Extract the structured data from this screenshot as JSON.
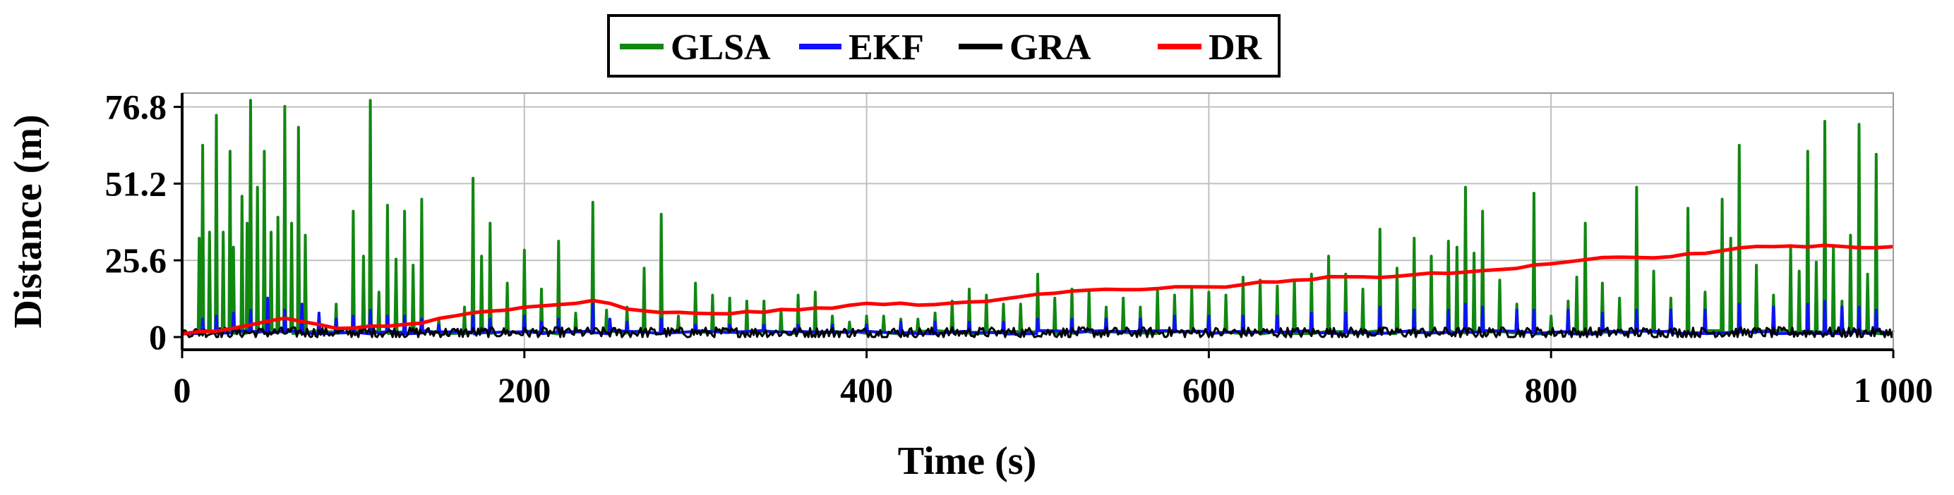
{
  "chart_data": {
    "type": "line",
    "title": "",
    "xlabel": "Time (s)",
    "ylabel": "Distance (m)",
    "xlim": [
      0,
      1000
    ],
    "ylim": [
      0,
      80
    ],
    "x_ticks": [
      0,
      200,
      400,
      600,
      800,
      1000
    ],
    "x_tick_labels": [
      "0",
      "200",
      "400",
      "600",
      "800",
      "1 000"
    ],
    "y_ticks": [
      0,
      25.6,
      51.2,
      76.8
    ],
    "y_tick_labels": [
      "0",
      "25.6",
      "51.2",
      "76.8"
    ],
    "grid": true,
    "legend_position": "top-center",
    "legend": [
      "GLSA",
      "EKF",
      "GRA",
      "DR"
    ],
    "series": [
      {
        "name": "GLSA",
        "color": "#118811",
        "style": "spikes",
        "baseline": 1,
        "peaks": [
          [
            10,
            33
          ],
          [
            12,
            64
          ],
          [
            16,
            35
          ],
          [
            20,
            74
          ],
          [
            24,
            35
          ],
          [
            28,
            62
          ],
          [
            30,
            30
          ],
          [
            35,
            47
          ],
          [
            38,
            38
          ],
          [
            40,
            79
          ],
          [
            44,
            50
          ],
          [
            48,
            62
          ],
          [
            52,
            35
          ],
          [
            56,
            40
          ],
          [
            60,
            77
          ],
          [
            64,
            38
          ],
          [
            68,
            70
          ],
          [
            72,
            34
          ],
          [
            80,
            8
          ],
          [
            90,
            11
          ],
          [
            100,
            42
          ],
          [
            106,
            27
          ],
          [
            110,
            79
          ],
          [
            115,
            15
          ],
          [
            120,
            44
          ],
          [
            125,
            26
          ],
          [
            130,
            42
          ],
          [
            135,
            24
          ],
          [
            140,
            46
          ],
          [
            150,
            6
          ],
          [
            165,
            10
          ],
          [
            170,
            53
          ],
          [
            175,
            27
          ],
          [
            180,
            38
          ],
          [
            190,
            18
          ],
          [
            200,
            29
          ],
          [
            210,
            16
          ],
          [
            220,
            32
          ],
          [
            230,
            8
          ],
          [
            240,
            45
          ],
          [
            248,
            9
          ],
          [
            260,
            10
          ],
          [
            270,
            23
          ],
          [
            280,
            41
          ],
          [
            290,
            7
          ],
          [
            300,
            18
          ],
          [
            310,
            14
          ],
          [
            320,
            13
          ],
          [
            330,
            12
          ],
          [
            340,
            12
          ],
          [
            350,
            9
          ],
          [
            360,
            14
          ],
          [
            370,
            15
          ],
          [
            380,
            7
          ],
          [
            390,
            5
          ],
          [
            400,
            7
          ],
          [
            410,
            7
          ],
          [
            420,
            6
          ],
          [
            430,
            6
          ],
          [
            440,
            8
          ],
          [
            450,
            12
          ],
          [
            460,
            16
          ],
          [
            470,
            14
          ],
          [
            480,
            11
          ],
          [
            490,
            11
          ],
          [
            500,
            21
          ],
          [
            510,
            13
          ],
          [
            520,
            16
          ],
          [
            530,
            15
          ],
          [
            540,
            10
          ],
          [
            550,
            13
          ],
          [
            560,
            10
          ],
          [
            570,
            16
          ],
          [
            580,
            14
          ],
          [
            590,
            16
          ],
          [
            600,
            15
          ],
          [
            610,
            14
          ],
          [
            620,
            20
          ],
          [
            630,
            19
          ],
          [
            640,
            17
          ],
          [
            650,
            19
          ],
          [
            660,
            21
          ],
          [
            670,
            27
          ],
          [
            680,
            21
          ],
          [
            690,
            16
          ],
          [
            700,
            36
          ],
          [
            710,
            23
          ],
          [
            720,
            33
          ],
          [
            730,
            27
          ],
          [
            740,
            32
          ],
          [
            745,
            30
          ],
          [
            750,
            50
          ],
          [
            755,
            28
          ],
          [
            760,
            42
          ],
          [
            770,
            19
          ],
          [
            780,
            11
          ],
          [
            790,
            48
          ],
          [
            800,
            7
          ],
          [
            810,
            12
          ],
          [
            815,
            20
          ],
          [
            820,
            38
          ],
          [
            830,
            18
          ],
          [
            840,
            13
          ],
          [
            850,
            50
          ],
          [
            860,
            22
          ],
          [
            870,
            13
          ],
          [
            880,
            43
          ],
          [
            890,
            15
          ],
          [
            900,
            46
          ],
          [
            905,
            33
          ],
          [
            910,
            64
          ],
          [
            920,
            24
          ],
          [
            930,
            14
          ],
          [
            940,
            30
          ],
          [
            945,
            22
          ],
          [
            950,
            62
          ],
          [
            955,
            25
          ],
          [
            960,
            72
          ],
          [
            965,
            30
          ],
          [
            970,
            12
          ],
          [
            975,
            34
          ],
          [
            980,
            71
          ],
          [
            985,
            21
          ],
          [
            990,
            61
          ]
        ]
      },
      {
        "name": "EKF",
        "color": "#1010ff",
        "style": "spikes",
        "baseline": 1,
        "peaks": [
          [
            12,
            6
          ],
          [
            20,
            7
          ],
          [
            30,
            8
          ],
          [
            40,
            9
          ],
          [
            50,
            13
          ],
          [
            60,
            9
          ],
          [
            70,
            11
          ],
          [
            80,
            8
          ],
          [
            90,
            6
          ],
          [
            100,
            7
          ],
          [
            110,
            9
          ],
          [
            120,
            7
          ],
          [
            130,
            7
          ],
          [
            140,
            6
          ],
          [
            150,
            4
          ],
          [
            170,
            7
          ],
          [
            180,
            6
          ],
          [
            200,
            7
          ],
          [
            210,
            5
          ],
          [
            220,
            6
          ],
          [
            240,
            11
          ],
          [
            250,
            6
          ],
          [
            260,
            5
          ],
          [
            280,
            6
          ],
          [
            300,
            4
          ],
          [
            320,
            4
          ],
          [
            340,
            4
          ],
          [
            360,
            4
          ],
          [
            380,
            4
          ],
          [
            400,
            4
          ],
          [
            420,
            5
          ],
          [
            440,
            5
          ],
          [
            460,
            5
          ],
          [
            480,
            5
          ],
          [
            500,
            6
          ],
          [
            520,
            6
          ],
          [
            540,
            6
          ],
          [
            560,
            6
          ],
          [
            580,
            7
          ],
          [
            600,
            7
          ],
          [
            620,
            7
          ],
          [
            640,
            7
          ],
          [
            660,
            8
          ],
          [
            680,
            8
          ],
          [
            700,
            10
          ],
          [
            720,
            9
          ],
          [
            740,
            9
          ],
          [
            750,
            11
          ],
          [
            760,
            10
          ],
          [
            780,
            9
          ],
          [
            790,
            9
          ],
          [
            810,
            9
          ],
          [
            830,
            8
          ],
          [
            850,
            9
          ],
          [
            870,
            9
          ],
          [
            890,
            9
          ],
          [
            910,
            11
          ],
          [
            930,
            10
          ],
          [
            950,
            11
          ],
          [
            960,
            12
          ],
          [
            970,
            10
          ],
          [
            980,
            10
          ],
          [
            990,
            9
          ]
        ]
      },
      {
        "name": "GRA",
        "color": "#000000",
        "style": "noise",
        "level": 1.5,
        "amplitude": 1.8
      },
      {
        "name": "DR",
        "color": "#ff0000",
        "style": "line",
        "x": [
          0,
          10,
          20,
          30,
          40,
          50,
          60,
          70,
          80,
          90,
          100,
          110,
          120,
          130,
          140,
          150,
          160,
          170,
          180,
          190,
          200,
          210,
          220,
          230,
          240,
          250,
          260,
          270,
          280,
          290,
          300,
          310,
          320,
          330,
          340,
          350,
          360,
          370,
          380,
          390,
          400,
          410,
          420,
          430,
          440,
          450,
          460,
          470,
          480,
          490,
          500,
          510,
          520,
          530,
          540,
          550,
          560,
          570,
          580,
          590,
          600,
          610,
          620,
          630,
          640,
          650,
          660,
          670,
          680,
          690,
          700,
          710,
          720,
          730,
          740,
          750,
          760,
          770,
          780,
          790,
          800,
          810,
          820,
          830,
          840,
          850,
          860,
          870,
          880,
          890,
          900,
          910,
          920,
          930,
          940,
          950,
          960,
          970,
          980,
          990,
          1000
        ],
        "y": [
          1,
          1.5,
          2,
          3,
          4,
          5,
          6,
          5,
          4,
          3,
          3,
          3.5,
          4,
          4.5,
          4.5,
          6,
          7,
          8,
          8.5,
          9,
          10,
          10.5,
          10.5,
          11,
          12,
          11,
          9.5,
          8.5,
          8,
          8,
          8,
          8,
          8,
          8.2,
          8.5,
          8.8,
          9,
          9.5,
          10,
          10.5,
          11,
          11,
          11,
          11,
          11,
          11,
          11.5,
          12,
          12.5,
          13.5,
          14.5,
          15,
          15.5,
          16,
          16,
          16,
          16,
          16,
          16.5,
          16.5,
          16.5,
          17,
          17.5,
          18,
          18.5,
          19,
          19.5,
          20,
          20,
          20,
          20,
          20,
          20.5,
          21,
          21,
          21.5,
          22,
          22.5,
          23,
          24,
          24.5,
          25,
          26,
          26.5,
          26.5,
          26.5,
          26.5,
          27,
          27.5,
          28,
          28.5,
          29.5,
          30,
          30,
          30.5,
          30.5,
          31,
          30.5,
          30,
          30,
          30
        ]
      }
    ]
  }
}
